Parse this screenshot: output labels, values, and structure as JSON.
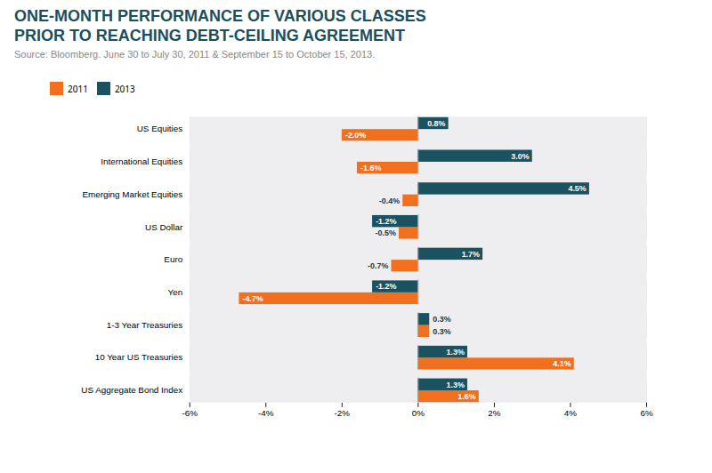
{
  "chart_data": {
    "type": "bar",
    "orientation": "horizontal",
    "title": "ONE-MONTH PERFORMANCE OF VARIOUS CLASSES\nPRIOR TO REACHING DEBT-CEILING AGREEMENT",
    "subtitle": "Source: Bloomberg. June 30 to July 30, 2011 & September 15 to October 15, 2013.",
    "categories": [
      "US Equities",
      "International Equities",
      "Emerging Market Equities",
      "US Dollar",
      "Euro",
      "Yen",
      "1-3 Year Treasuries",
      "10 Year US Treasuries",
      "US Aggregate Bond Index"
    ],
    "series": [
      {
        "name": "2011",
        "color": "#F07020",
        "values": [
          -2.0,
          -1.6,
          -0.4,
          -0.5,
          -0.7,
          -4.7,
          0.3,
          4.1,
          1.6
        ],
        "value_labels": [
          "-2.0%",
          "-1.6%",
          "-0.4%",
          "-0.5%",
          "-0.7%",
          "-4.7%",
          "0.3%",
          "4.1%",
          "1.6%"
        ]
      },
      {
        "name": "2013",
        "color": "#1B5260",
        "values": [
          0.8,
          3.0,
          4.5,
          -1.2,
          1.7,
          -1.2,
          0.3,
          1.3,
          1.3
        ],
        "value_labels": [
          "0.8%",
          "3.0%",
          "4.5%",
          "-1.2%",
          "1.7%",
          "-1.2%",
          "0.3%",
          "1.3%",
          "1.3%"
        ]
      }
    ],
    "xlim": [
      -6,
      6
    ],
    "xticks": [
      {
        "value": -6,
        "label": "-6%"
      },
      {
        "value": -4,
        "label": "-4%"
      },
      {
        "value": -2,
        "label": "-2%"
      },
      {
        "value": 0,
        "label": "0%"
      },
      {
        "value": 2,
        "label": "2%"
      },
      {
        "value": 4,
        "label": "4%"
      },
      {
        "value": 6,
        "label": "6%"
      }
    ],
    "grid": true,
    "legend": "top",
    "data_labels": true
  }
}
